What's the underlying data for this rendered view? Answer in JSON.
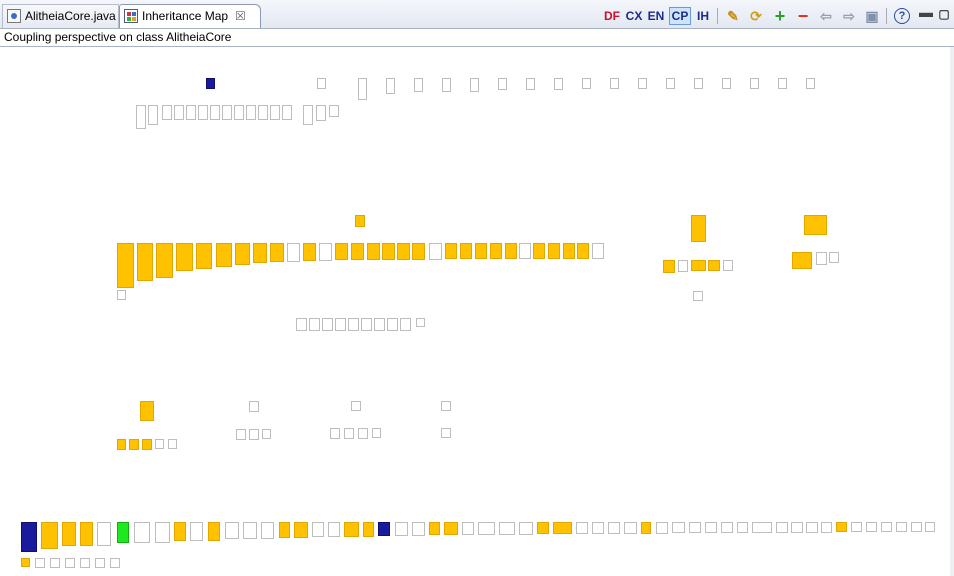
{
  "tabs": {
    "file_tab": "AlitheiaCore.java",
    "map_tab": "Inheritance Map",
    "close_glyph": "☒"
  },
  "toolbar": {
    "df": "DF",
    "cx": "CX",
    "en": "EN",
    "cp": "CP",
    "ih": "IH",
    "icons": [
      "pin-icon",
      "refresh-icon",
      "zoom-in-icon",
      "zoom-out-icon",
      "back-icon",
      "forward-icon",
      "save-icon",
      "help-icon",
      "minimize-icon",
      "maximize-icon"
    ]
  },
  "subtitle": "Coupling perspective on class AlitheiaCore",
  "colors": {
    "coupled": "#ffc200",
    "selected": "#1a1a9e",
    "highlight": "#1ee81e",
    "neutral_border": "#bdbdbd",
    "df": "#c8102e",
    "cx": "#1a2d8a",
    "en": "#1a2d8a",
    "cp": "#1a2d8a",
    "ih": "#1a2d8a"
  },
  "map_legend_states": [
    "neutral",
    "coupled",
    "selected",
    "highlight"
  ]
}
